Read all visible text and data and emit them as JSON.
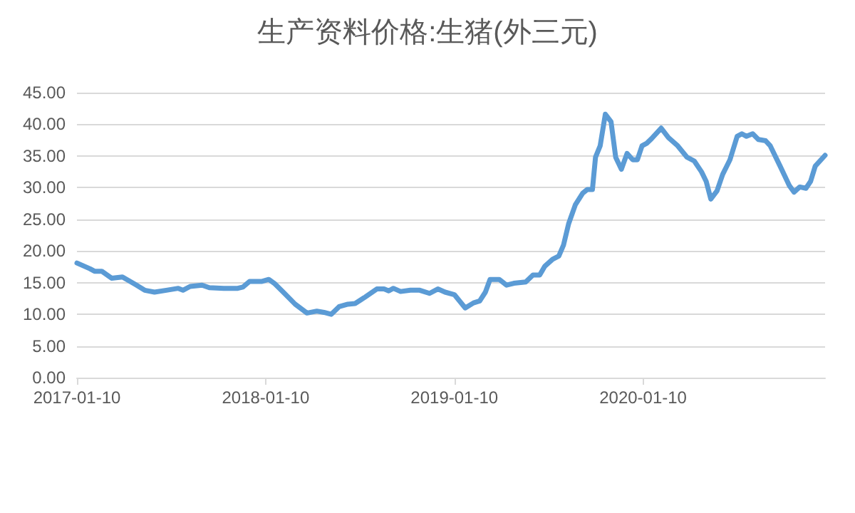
{
  "chart_data": {
    "type": "line",
    "title": "生产资料价格:生猪(外三元)",
    "x": [
      "2017-01-10",
      "2017-02-04",
      "2017-02-13",
      "2017-02-27",
      "2017-03-18",
      "2017-04-08",
      "2017-05-03",
      "2017-05-21",
      "2017-06-09",
      "2017-07-02",
      "2017-07-25",
      "2017-08-03",
      "2017-08-17",
      "2017-09-09",
      "2017-09-23",
      "2017-10-21",
      "2017-11-17",
      "2017-11-27",
      "2017-12-10",
      "2018-01-03",
      "2018-01-16",
      "2018-01-28",
      "2018-02-13",
      "2018-03-08",
      "2018-03-31",
      "2018-04-19",
      "2018-05-03",
      "2018-05-17",
      "2018-06-01",
      "2018-06-18",
      "2018-07-02",
      "2018-07-21",
      "2018-08-13",
      "2018-08-27",
      "2018-09-05",
      "2018-09-14",
      "2018-09-28",
      "2018-10-17",
      "2018-11-04",
      "2018-11-23",
      "2018-12-09",
      "2018-12-23",
      "2019-01-10",
      "2019-01-31",
      "2019-02-16",
      "2019-02-28",
      "2019-03-11",
      "2019-03-20",
      "2019-04-07",
      "2019-04-21",
      "2019-05-05",
      "2019-05-28",
      "2019-06-11",
      "2019-06-24",
      "2019-07-04",
      "2019-07-19",
      "2019-07-31",
      "2019-08-09",
      "2019-08-19",
      "2019-09-01",
      "2019-09-15",
      "2019-09-24",
      "2019-10-04",
      "2019-10-10",
      "2019-10-19",
      "2019-10-29",
      "2019-11-09",
      "2019-11-18",
      "2019-11-29",
      "2019-12-10",
      "2019-12-21",
      "2019-12-30",
      "2020-01-08",
      "2020-01-17",
      "2020-01-26",
      "2020-02-14",
      "2020-02-28",
      "2020-03-17",
      "2020-04-04",
      "2020-04-18",
      "2020-05-02",
      "2020-05-11",
      "2020-05-20",
      "2020-06-01",
      "2020-06-12",
      "2020-06-26",
      "2020-07-10",
      "2020-07-19",
      "2020-07-28",
      "2020-08-09",
      "2020-08-20",
      "2020-09-03",
      "2020-09-12",
      "2020-10-01",
      "2020-10-19",
      "2020-10-28",
      "2020-11-08",
      "2020-11-20",
      "2020-11-29",
      "2020-12-08",
      "2020-12-27"
    ],
    "series": [
      {
        "color": "#5b9bd5",
        "values": [
          18.1,
          17.2,
          16.8,
          16.8,
          15.7,
          15.9,
          14.7,
          13.8,
          13.5,
          13.8,
          14.1,
          13.8,
          14.4,
          14.6,
          14.2,
          14.1,
          14.1,
          14.3,
          15.2,
          15.2,
          15.5,
          14.8,
          13.5,
          11.6,
          10.2,
          10.5,
          10.3,
          10.0,
          11.2,
          11.6,
          11.7,
          12.7,
          14.0,
          14.0,
          13.7,
          14.1,
          13.6,
          13.8,
          13.8,
          13.3,
          14.0,
          13.5,
          13.1,
          11.0,
          11.8,
          12.1,
          13.5,
          15.5,
          15.5,
          14.6,
          14.9,
          15.1,
          16.2,
          16.2,
          17.6,
          18.7,
          19.2,
          20.9,
          24.3,
          27.3,
          29.1,
          29.7,
          29.7,
          34.8,
          36.6,
          41.6,
          40.4,
          34.8,
          32.9,
          35.4,
          34.4,
          34.4,
          36.6,
          37.0,
          37.7,
          39.4,
          37.9,
          36.6,
          34.8,
          34.2,
          32.5,
          31.0,
          28.2,
          29.5,
          32.1,
          34.4,
          38.1,
          38.5,
          38.1,
          38.5,
          37.6,
          37.4,
          36.6,
          33.4,
          30.3,
          29.3,
          30.1,
          29.9,
          31.0,
          33.4,
          35.1
        ]
      }
    ],
    "xlim": [
      "2017-01-10",
      "2020-12-27"
    ],
    "xticks": [
      "2017-01-10",
      "2018-01-10",
      "2019-01-10",
      "2020-01-10"
    ],
    "ylim": [
      0,
      45
    ],
    "yticks": [
      {
        "value": 0,
        "label": "0.00"
      },
      {
        "value": 5,
        "label": "5.00"
      },
      {
        "value": 10,
        "label": "10.00"
      },
      {
        "value": 15,
        "label": "15.00"
      },
      {
        "value": 20,
        "label": "20.00"
      },
      {
        "value": 25,
        "label": "25.00"
      },
      {
        "value": 30,
        "label": "30.00"
      },
      {
        "value": 35,
        "label": "35.00"
      },
      {
        "value": 40,
        "label": "40.00"
      },
      {
        "value": 45,
        "label": "45.00"
      }
    ],
    "grid": "y",
    "marker": "none",
    "line_style": "solid"
  }
}
